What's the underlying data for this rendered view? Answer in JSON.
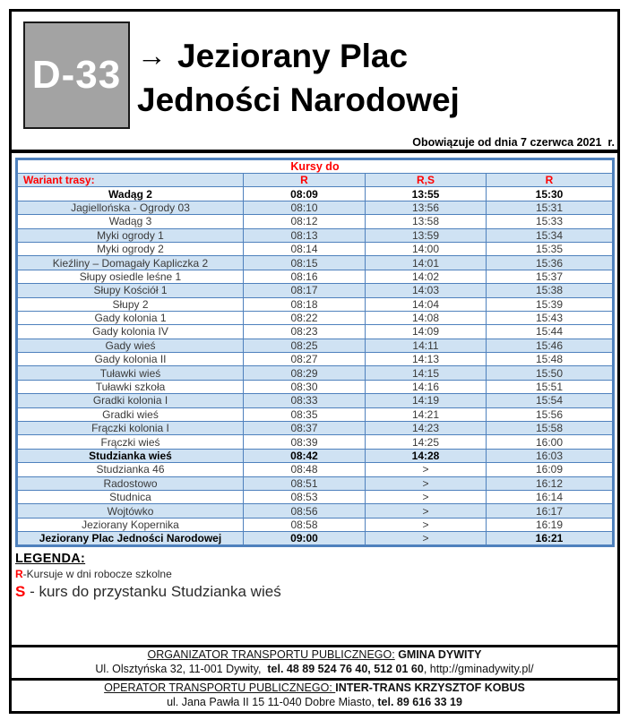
{
  "colors": {
    "accent_red": "#ff0000",
    "table_border_blue": "#4f81bd",
    "row_shade_blue": "#cfe2f3",
    "route_box_gray": "#a3a3a3"
  },
  "header": {
    "route_code": "D-33",
    "arrow": "→",
    "title_line1": "Jeziorany Plac",
    "title_line2": "Jedności Narodowej",
    "valid_from": "Obowiązuje od dnia 7 czerwca 2021  r."
  },
  "table": {
    "kursy_header": "Kursy do",
    "variant_label": "Wariant trasy:",
    "variant_columns": [
      "R",
      "R,S",
      "R"
    ],
    "rows": [
      {
        "stop": "Wadąg 2",
        "times": [
          "08:09",
          "13:55",
          "15:30"
        ],
        "bold": true,
        "shaded": false,
        "bold_times": [
          true,
          true,
          true
        ]
      },
      {
        "stop": "Jagiellońska - Ogrody 03",
        "times": [
          "08:10",
          "13:56",
          "15:31"
        ],
        "bold": false,
        "shaded": true,
        "bold_times": [
          false,
          false,
          false
        ]
      },
      {
        "stop": "Wadąg 3",
        "times": [
          "08:12",
          "13:58",
          "15:33"
        ],
        "bold": false,
        "shaded": false,
        "bold_times": [
          false,
          false,
          false
        ]
      },
      {
        "stop": "Myki ogrody 1",
        "times": [
          "08:13",
          "13:59",
          "15:34"
        ],
        "bold": false,
        "shaded": true,
        "bold_times": [
          false,
          false,
          false
        ]
      },
      {
        "stop": "Myki ogrody 2",
        "times": [
          "08:14",
          "14:00",
          "15:35"
        ],
        "bold": false,
        "shaded": false,
        "bold_times": [
          false,
          false,
          false
        ]
      },
      {
        "stop": "Kieźliny – Domagały Kapliczka 2",
        "times": [
          "08:15",
          "14:01",
          "15:36"
        ],
        "bold": false,
        "shaded": true,
        "bold_times": [
          false,
          false,
          false
        ]
      },
      {
        "stop": "Słupy osiedle leśne 1",
        "times": [
          "08:16",
          "14:02",
          "15:37"
        ],
        "bold": false,
        "shaded": false,
        "bold_times": [
          false,
          false,
          false
        ]
      },
      {
        "stop": "Słupy  Kościół 1",
        "times": [
          "08:17",
          "14:03",
          "15:38"
        ],
        "bold": false,
        "shaded": true,
        "bold_times": [
          false,
          false,
          false
        ]
      },
      {
        "stop": "Słupy 2",
        "times": [
          "08:18",
          "14:04",
          "15:39"
        ],
        "bold": false,
        "shaded": false,
        "bold_times": [
          false,
          false,
          false
        ]
      },
      {
        "stop": "Gady kolonia 1",
        "times": [
          "08:22",
          "14:08",
          "15:43"
        ],
        "bold": false,
        "shaded": false,
        "bold_times": [
          false,
          false,
          false
        ]
      },
      {
        "stop": "Gady kolonia IV",
        "times": [
          "08:23",
          "14:09",
          "15:44"
        ],
        "bold": false,
        "shaded": false,
        "bold_times": [
          false,
          false,
          false
        ]
      },
      {
        "stop": "Gady wieś",
        "times": [
          "08:25",
          "14:11",
          "15:46"
        ],
        "bold": false,
        "shaded": true,
        "bold_times": [
          false,
          false,
          false
        ]
      },
      {
        "stop": "Gady kolonia II",
        "times": [
          "08:27",
          "14:13",
          "15:48"
        ],
        "bold": false,
        "shaded": false,
        "bold_times": [
          false,
          false,
          false
        ]
      },
      {
        "stop": "Tuławki wieś",
        "times": [
          "08:29",
          "14:15",
          "15:50"
        ],
        "bold": false,
        "shaded": true,
        "bold_times": [
          false,
          false,
          false
        ]
      },
      {
        "stop": "Tuławki szkoła",
        "times": [
          "08:30",
          "14:16",
          "15:51"
        ],
        "bold": false,
        "shaded": false,
        "bold_times": [
          false,
          false,
          false
        ]
      },
      {
        "stop": "Gradki kolonia I",
        "times": [
          "08:33",
          "14:19",
          "15:54"
        ],
        "bold": false,
        "shaded": true,
        "bold_times": [
          false,
          false,
          false
        ]
      },
      {
        "stop": "Gradki wieś",
        "times": [
          "08:35",
          "14:21",
          "15:56"
        ],
        "bold": false,
        "shaded": false,
        "bold_times": [
          false,
          false,
          false
        ]
      },
      {
        "stop": "Frączki kolonia I",
        "times": [
          "08:37",
          "14:23",
          "15:58"
        ],
        "bold": false,
        "shaded": true,
        "bold_times": [
          false,
          false,
          false
        ]
      },
      {
        "stop": "Frączki wieś",
        "times": [
          "08:39",
          "14:25",
          "16:00"
        ],
        "bold": false,
        "shaded": false,
        "bold_times": [
          false,
          false,
          false
        ]
      },
      {
        "stop": "Studzianka wieś",
        "times": [
          "08:42",
          "14:28",
          "16:03"
        ],
        "bold": true,
        "shaded": true,
        "bold_times": [
          true,
          true,
          false
        ]
      },
      {
        "stop": "Studzianka 46",
        "times": [
          "08:48",
          ">",
          "16:09"
        ],
        "bold": false,
        "shaded": false,
        "bold_times": [
          false,
          false,
          false
        ]
      },
      {
        "stop": "Radostowo",
        "times": [
          "08:51",
          ">",
          "16:12"
        ],
        "bold": false,
        "shaded": true,
        "bold_times": [
          false,
          false,
          false
        ]
      },
      {
        "stop": "Studnica",
        "times": [
          "08:53",
          ">",
          "16:14"
        ],
        "bold": false,
        "shaded": false,
        "bold_times": [
          false,
          false,
          false
        ]
      },
      {
        "stop": "Wojtówko",
        "times": [
          "08:56",
          ">",
          "16:17"
        ],
        "bold": false,
        "shaded": true,
        "bold_times": [
          false,
          false,
          false
        ]
      },
      {
        "stop": "Jeziorany Kopernika",
        "times": [
          "08:58",
          ">",
          "16:19"
        ],
        "bold": false,
        "shaded": false,
        "bold_times": [
          false,
          false,
          false
        ]
      },
      {
        "stop": "Jeziorany Plac Jedności Narodowej",
        "times": [
          "09:00",
          ">",
          "16:21"
        ],
        "bold": true,
        "shaded": true,
        "bold_times": [
          true,
          false,
          true
        ]
      }
    ]
  },
  "legend": {
    "title": "LEGENDA:",
    "r_symbol": "R",
    "r_text": "-Kursuje w dni robocze szkolne",
    "s_symbol": "S",
    "s_text": " - kurs do przystanku Studzianka wieś"
  },
  "footer": {
    "organizer": {
      "label": "ORGANIZATOR TRANSPORTU PUBLICZNEGO:",
      "name": " GMINA DYWITY",
      "address_prefix": "Ul. Olsztyńska 32, 11-001 Dywity,  ",
      "phone": "tel. 48 89 524 76 40, 512 01 60",
      "address_suffix": ", http://gminadywity.pl/"
    },
    "operator": {
      "label": "OPERATOR TRANSPORTU PUBLICZNEGO: ",
      "name": "INTER-TRANS KRZYSZTOF KOBUS",
      "address_prefix": "ul. Jana Pawła II 15 11-040 Dobre Miasto, ",
      "phone": "tel. 89 616 33 19"
    }
  }
}
